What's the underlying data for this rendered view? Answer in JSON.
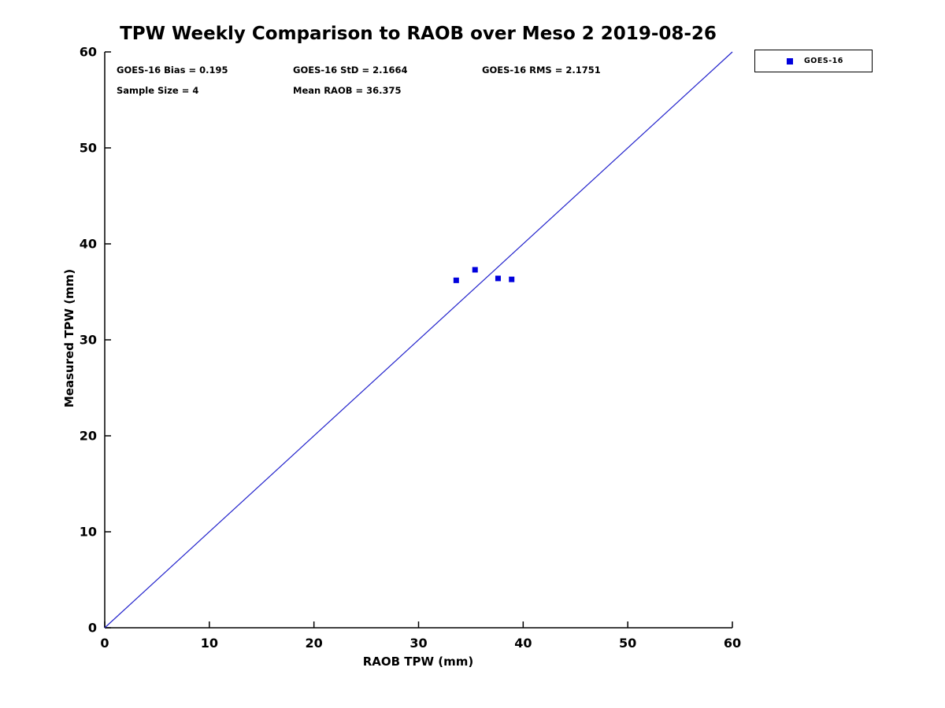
{
  "chart_data": {
    "type": "scatter",
    "title": "TPW Weekly Comparison to RAOB over Meso 2 2019-08-26",
    "xlabel": "RAOB TPW (mm)",
    "ylabel": "Measured TPW (mm)",
    "xlim": [
      0,
      60
    ],
    "ylim": [
      0,
      60
    ],
    "xticks": [
      0,
      10,
      20,
      30,
      40,
      50,
      60
    ],
    "yticks": [
      0,
      10,
      20,
      30,
      40,
      50,
      60
    ],
    "grid": false,
    "series": [
      {
        "name": "GOES-16",
        "marker": "square",
        "color": "#0000dd",
        "points": [
          [
            33.6,
            36.2
          ],
          [
            35.4,
            37.3
          ],
          [
            37.6,
            36.4
          ],
          [
            38.9,
            36.3
          ]
        ]
      }
    ],
    "reference_line": {
      "from": [
        0,
        0
      ],
      "to": [
        60,
        60
      ],
      "color": "#2222cc"
    },
    "annotations": {
      "bias": "GOES-16 Bias = 0.195",
      "std": "GOES-16 StD = 2.1664",
      "rms": "GOES-16 RMS = 2.1751",
      "sample": "Sample Size = 4",
      "mean": "Mean RAOB = 36.375"
    },
    "legend": {
      "position": "top-right-outside",
      "entries": [
        "GOES-16"
      ]
    },
    "axis_color": "#000000"
  }
}
